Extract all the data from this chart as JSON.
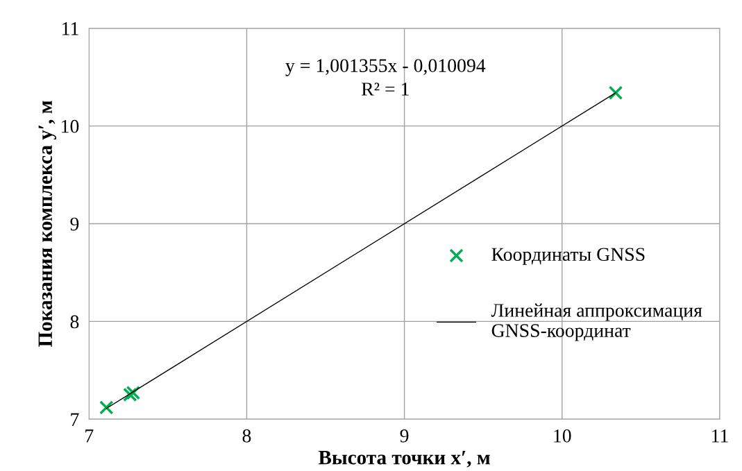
{
  "chart_data": {
    "type": "scatter",
    "xlabel": "Высота точки x′, м",
    "ylabel": "Показания комплекса y′, м",
    "xlim": [
      7,
      11
    ],
    "ylim": [
      7,
      11
    ],
    "xticks": [
      7,
      8,
      9,
      10,
      11
    ],
    "yticks": [
      7,
      8,
      9,
      10,
      11
    ],
    "grid": true,
    "legend": "right",
    "annotations": [
      "y = 1,001355x - 0,010094",
      "R² = 1"
    ],
    "series": [
      {
        "name": "Координаты GNSS",
        "marker": "cross",
        "color": "#00b050",
        "x": [
          7.11,
          7.26,
          7.28,
          10.34
        ],
        "values": [
          7.12,
          7.25,
          7.27,
          10.34
        ]
      },
      {
        "name": "Линейная аппроксимация\nGNSS-координат",
        "type": "line",
        "marker": "none",
        "line_style": "solid",
        "color": "#000000",
        "x": [
          7.11,
          10.34
        ],
        "values": [
          7.11,
          10.34
        ]
      }
    ]
  }
}
